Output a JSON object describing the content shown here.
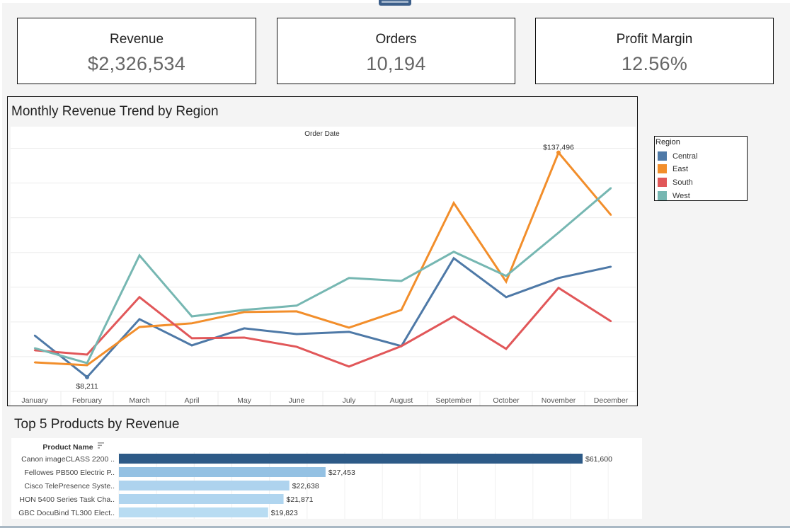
{
  "kpis": [
    {
      "label": "Revenue",
      "value": "$2,326,534"
    },
    {
      "label": "Orders",
      "value": "10,194"
    },
    {
      "label": "Profit Margin",
      "value": "12.56%"
    }
  ],
  "legend": {
    "title": "Region",
    "items": [
      {
        "label": "Central",
        "color": "#4e79a7"
      },
      {
        "label": "East",
        "color": "#f28e2b"
      },
      {
        "label": "South",
        "color": "#e15759"
      },
      {
        "label": "West",
        "color": "#76b7b2"
      }
    ]
  },
  "chart_data": [
    {
      "type": "line",
      "title": "Monthly Revenue Trend by Region",
      "xlabel": "Order Date",
      "ylabel": "",
      "categories": [
        "January",
        "February",
        "March",
        "April",
        "May",
        "June",
        "July",
        "August",
        "September",
        "October",
        "November",
        "December"
      ],
      "ylim": [
        0,
        140000
      ],
      "grid": true,
      "legend": "right",
      "series": [
        {
          "name": "Central",
          "color": "#4e79a7",
          "values": [
            32200,
            8211,
            41600,
            26500,
            36300,
            33000,
            34300,
            26100,
            76700,
            54300,
            65300,
            71800
          ]
        },
        {
          "name": "East",
          "color": "#f28e2b",
          "values": [
            16700,
            15100,
            37100,
            39200,
            45700,
            46100,
            36700,
            46900,
            108500,
            63200,
            137496,
            101600
          ]
        },
        {
          "name": "South",
          "color": "#e15759",
          "values": [
            23700,
            21200,
            54300,
            30600,
            31000,
            25700,
            14300,
            26100,
            43200,
            24500,
            59600,
            40400
          ]
        },
        {
          "name": "West",
          "color": "#76b7b2",
          "values": [
            24900,
            16300,
            78300,
            43200,
            46900,
            49400,
            65300,
            63600,
            80400,
            66500,
            91400,
            117100
          ]
        }
      ],
      "annotations": [
        {
          "series": "East",
          "category": "November",
          "text": "$137,496"
        },
        {
          "series": "Central",
          "category": "February",
          "text": "$8,211"
        }
      ]
    },
    {
      "type": "bar",
      "title": "Top 5 Products by Revenue",
      "ylabel": "Product Name",
      "categories": [
        "Canon imageCLASS 2200 ..",
        "Fellowes PB500 Electric P..",
        "Cisco TelePresence Syste..",
        "HON 5400 Series Task Cha..",
        "GBC DocuBind TL300 Elect.."
      ],
      "values": [
        61600,
        27453,
        22638,
        21871,
        19823
      ],
      "value_labels": [
        "$61,600",
        "$27,453",
        "$22,638",
        "$21,871",
        "$19,823"
      ],
      "colors": [
        "#2d5a87",
        "#94c1e3",
        "#aed3ee",
        "#b0d5ef",
        "#b8dcf2"
      ],
      "xlim": [
        0,
        70000
      ],
      "grid": true
    }
  ]
}
